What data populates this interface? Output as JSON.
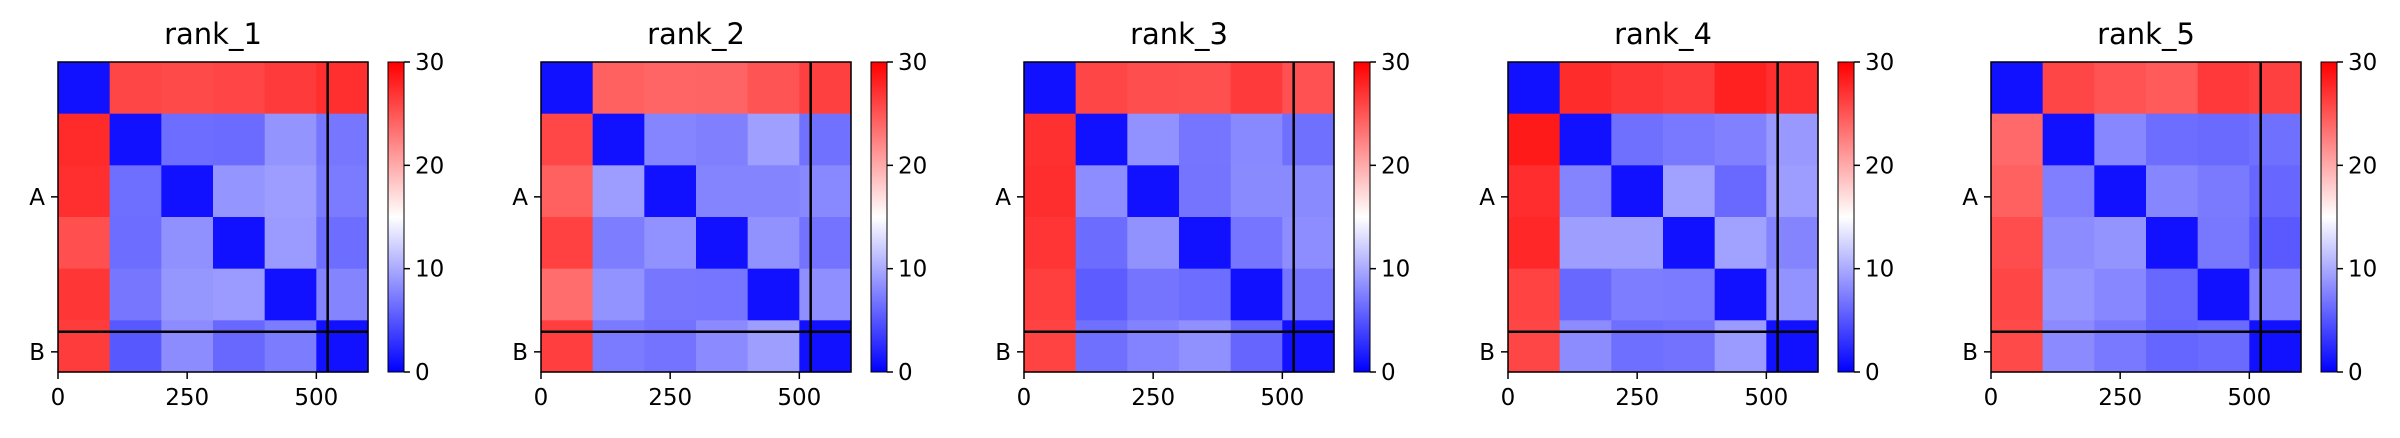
{
  "chart_data": {
    "type": "heatmap",
    "colormap": {
      "low": "#0000ff",
      "mid": "#ffffff",
      "high": "#ff0000"
    },
    "vmin": 0,
    "vmax": 30,
    "chain_labels": [
      "A",
      "B"
    ],
    "chain_boundary": 522,
    "matrix_size": 600,
    "x_ticks": [
      0,
      250,
      500
    ],
    "x_tick_labels": [
      "0",
      "250",
      "500"
    ],
    "colorbar_ticks": [
      0,
      10,
      20,
      30
    ],
    "colorbar_tick_labels": [
      "0",
      "10",
      "20",
      "30"
    ],
    "panels": [
      {
        "title": "rank_1"
      },
      {
        "title": "rank_2"
      },
      {
        "title": "rank_3"
      },
      {
        "title": "rank_4"
      },
      {
        "title": "rank_5"
      }
    ]
  }
}
